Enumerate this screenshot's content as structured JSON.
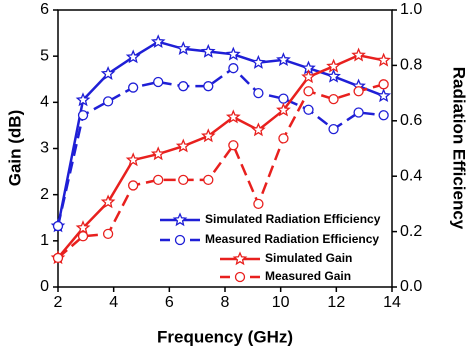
{
  "chart_data": {
    "type": "line",
    "xlabel": "Frequency (GHz)",
    "ylabel": "Gain (dB)",
    "y2label": "Radiation Efficiency",
    "x": [
      2,
      2.9,
      3.8,
      4.7,
      5.6,
      6.5,
      7.4,
      8.3,
      9.2,
      10.1,
      11,
      11.9,
      12.8,
      13.7
    ],
    "xlim": [
      2,
      14
    ],
    "xticks": [
      2,
      4,
      6,
      8,
      10,
      12,
      14
    ],
    "ylim": [
      0,
      6
    ],
    "yticks": [
      0,
      1,
      2,
      3,
      4,
      5,
      6
    ],
    "y2lim": [
      0,
      1
    ],
    "y2ticks": [
      {
        "value": 0,
        "label": "0.0"
      },
      {
        "value": 0.2,
        "label": "0.2"
      },
      {
        "value": 0.4,
        "label": "0.4"
      },
      {
        "value": 0.6,
        "label": "0.6"
      },
      {
        "value": 0.8,
        "label": "0.8"
      },
      {
        "value": 1,
        "label": "1.0"
      }
    ],
    "legend": "lower right",
    "series": [
      {
        "name": "Simulated Radiation Efficiency",
        "color": "#1f1fd6",
        "axis": "y2",
        "marker": "star",
        "dashed": false,
        "values": [
          0.22,
          0.675,
          0.77,
          0.83,
          0.885,
          0.86,
          0.85,
          0.84,
          0.81,
          0.82,
          0.79,
          0.76,
          0.725,
          0.69
        ]
      },
      {
        "name": "Measured Radiation Efficiency",
        "color": "#1f1fd6",
        "axis": "y2",
        "marker": "circle",
        "dashed": true,
        "values": [
          0.22,
          0.62,
          0.67,
          0.72,
          0.74,
          0.725,
          0.725,
          0.79,
          0.7,
          0.68,
          0.64,
          0.57,
          0.63,
          0.62
        ]
      },
      {
        "name": "Simulated Gain",
        "color": "#e8201e",
        "marker": "star",
        "dashed": false,
        "values": [
          0.63,
          1.28,
          1.84,
          2.75,
          2.88,
          3.05,
          3.27,
          3.68,
          3.4,
          3.83,
          4.55,
          4.78,
          5.02,
          4.91
        ]
      },
      {
        "name": "Measured Gain",
        "color": "#e8201e",
        "marker": "circle",
        "dashed": true,
        "values": [
          0.63,
          1.1,
          1.15,
          2.2,
          2.32,
          2.32,
          2.32,
          3.07,
          1.8,
          3.22,
          4.24,
          4.07,
          4.24,
          4.39
        ]
      }
    ]
  }
}
